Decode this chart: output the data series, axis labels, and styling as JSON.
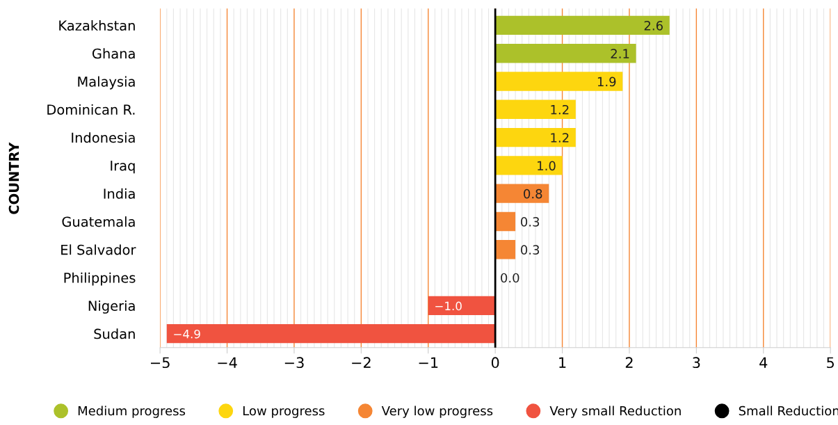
{
  "chart_data": {
    "type": "bar",
    "orientation": "horizontal",
    "ylabel": "COUNTRY",
    "categories": [
      "Kazakhstan",
      "Ghana",
      "Malaysia",
      "Dominican R.",
      "Indonesia",
      "Iraq",
      "India",
      "Guatemala",
      "El Salvador",
      "Philippines",
      "Nigeria",
      "Sudan"
    ],
    "series": [
      {
        "name": "Medium progress",
        "color": "#acc12a",
        "values": [
          2.6,
          2.1,
          null,
          null,
          null,
          null,
          null,
          null,
          null,
          null,
          null,
          null
        ],
        "value_labels": [
          "2.6",
          "2.1",
          null,
          null,
          null,
          null,
          null,
          null,
          null,
          null,
          null,
          null
        ]
      },
      {
        "name": "Low progress",
        "color": "#fdd60f",
        "values": [
          null,
          null,
          1.9,
          1.2,
          1.2,
          1.0,
          null,
          null,
          null,
          null,
          null,
          null
        ],
        "value_labels": [
          null,
          null,
          "1.9",
          "1.2",
          "1.2",
          "1.0",
          null,
          null,
          null,
          null,
          null,
          null
        ]
      },
      {
        "name": "Very low progress",
        "color": "#f58634",
        "values": [
          null,
          null,
          null,
          null,
          null,
          null,
          0.8,
          0.3,
          0.3,
          0.0,
          null,
          null
        ],
        "value_labels": [
          null,
          null,
          null,
          null,
          null,
          null,
          "0.8",
          "0.3",
          "0.3",
          "0.0",
          null,
          null
        ]
      },
      {
        "name": "Very small Reduction",
        "color": "#f05340",
        "values": [
          null,
          null,
          null,
          null,
          null,
          null,
          null,
          null,
          null,
          null,
          -1.0,
          -4.9
        ],
        "value_labels": [
          null,
          null,
          null,
          null,
          null,
          null,
          null,
          null,
          null,
          null,
          "−1.0",
          "−4.9"
        ]
      },
      {
        "name": "Small Reduction",
        "color": "#000000",
        "values": [
          null,
          null,
          null,
          null,
          null,
          null,
          null,
          null,
          null,
          null,
          null,
          null
        ]
      }
    ],
    "xlim": [
      -5,
      5
    ],
    "xticks": [
      {
        "value": -5,
        "label": "−5"
      },
      {
        "value": -4,
        "label": "−4"
      },
      {
        "value": -3,
        "label": "−3"
      },
      {
        "value": -2,
        "label": "−2"
      },
      {
        "value": -1,
        "label": "−1"
      },
      0,
      1,
      2,
      3,
      4,
      5
    ],
    "grid": "x",
    "legend": "bottom",
    "ref_lines": [
      {
        "axis": "x",
        "value": 0,
        "label": null,
        "color": "#000000"
      }
    ]
  }
}
